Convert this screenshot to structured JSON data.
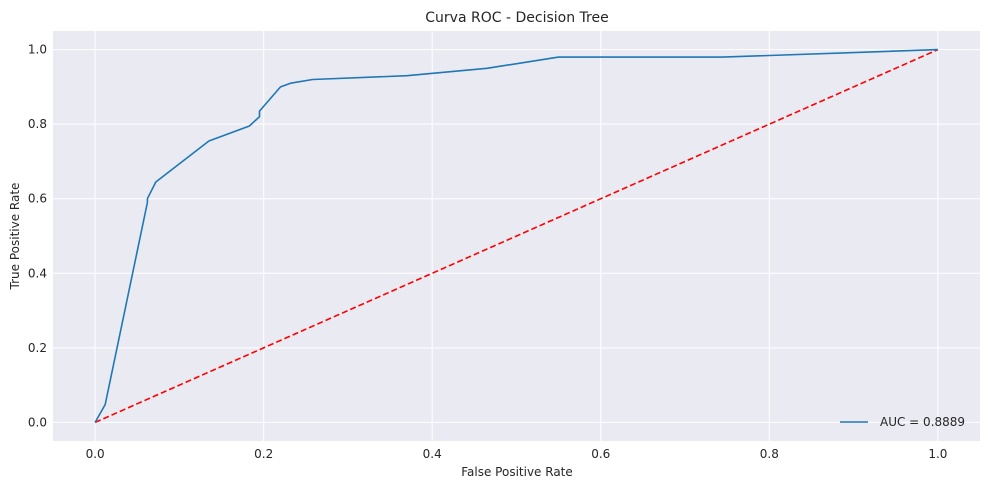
{
  "chart_data": {
    "type": "line",
    "title": "Curva ROC - Decision Tree",
    "xlabel": "False Positive Rate",
    "ylabel": "True Positive Rate",
    "xlim": [
      -0.05,
      1.05
    ],
    "ylim": [
      -0.05,
      1.05
    ],
    "xticks": [
      0.0,
      0.2,
      0.4,
      0.6,
      0.8,
      1.0
    ],
    "yticks": [
      0.0,
      0.2,
      0.4,
      0.6,
      0.8,
      1.0
    ],
    "xtick_labels": [
      "0.0",
      "0.2",
      "0.4",
      "0.6",
      "0.8",
      "1.0"
    ],
    "ytick_labels": [
      "0.0",
      "0.2",
      "0.4",
      "0.6",
      "0.8",
      "1.0"
    ],
    "grid": true,
    "legend_position": "lower-right",
    "series": [
      {
        "name": "AUC = 0.8889",
        "color": "#1f77b4",
        "style": "solid",
        "x": [
          0.0,
          0.012,
          0.062,
          0.062,
          0.072,
          0.135,
          0.183,
          0.195,
          0.195,
          0.22,
          0.232,
          0.258,
          0.37,
          0.465,
          0.55,
          0.745,
          1.0
        ],
        "y": [
          0.0,
          0.048,
          0.59,
          0.6,
          0.645,
          0.755,
          0.795,
          0.82,
          0.835,
          0.9,
          0.91,
          0.92,
          0.93,
          0.95,
          0.98,
          0.98,
          1.0
        ]
      },
      {
        "name": "",
        "color": "#ff0000",
        "style": "dashed",
        "x": [
          0.0,
          1.0
        ],
        "y": [
          0.0,
          1.0
        ]
      }
    ]
  },
  "colors": {
    "plot_background": "#eaeaf2",
    "grid": "#ffffff",
    "text": "#262626"
  }
}
